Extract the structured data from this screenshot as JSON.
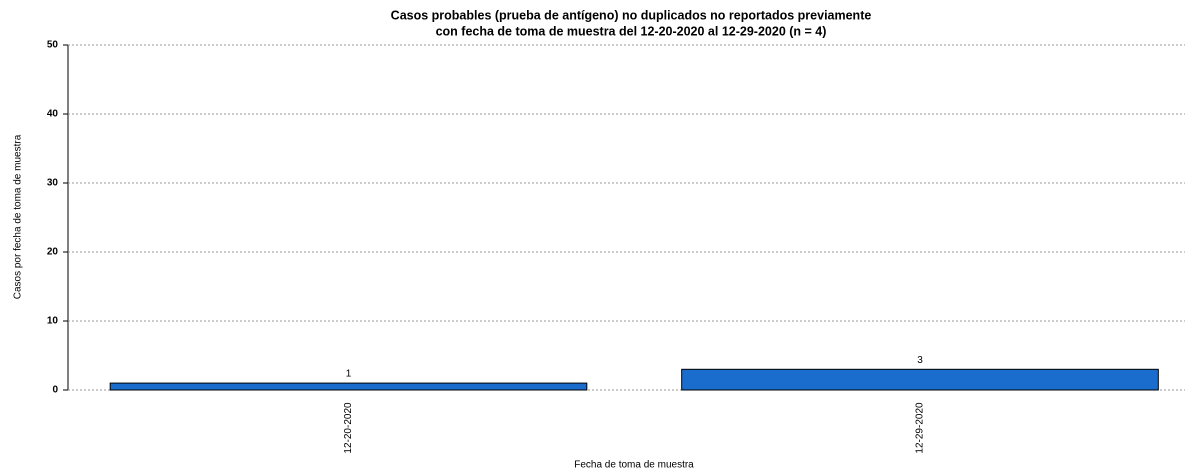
{
  "chart_data": {
    "type": "bar",
    "title": [
      "Casos probables (prueba de antígeno) no duplicados no reportados previamente",
      "con fecha de toma de muestra del 12-20-2020 al 12-29-2020 (n = 4)"
    ],
    "x_label": "Fecha de toma de muestra",
    "y_label": "Casos por fecha de toma de muestra",
    "categories": [
      "12-20-2020",
      "12-29-2020"
    ],
    "values": [
      1,
      3
    ],
    "color": "#1a6dcc",
    "ylim": [
      0,
      50
    ],
    "yticks": [
      0,
      10,
      20,
      30,
      40,
      50
    ],
    "grid": true
  }
}
